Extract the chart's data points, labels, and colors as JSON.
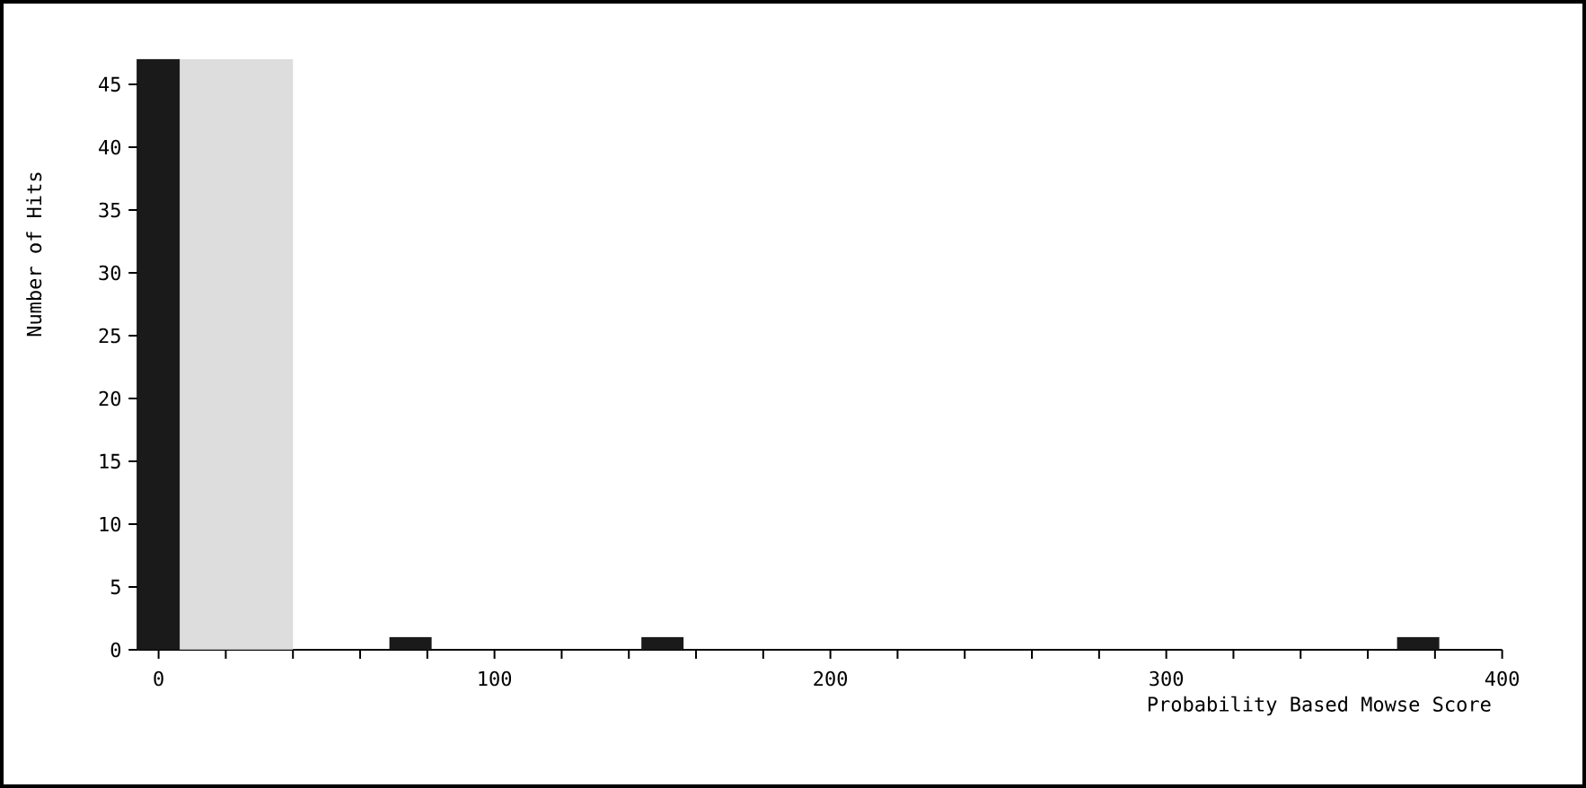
{
  "chart_data": {
    "type": "histogram",
    "xlabel": "Probability Based Mowse Score",
    "ylabel": "Number of Hits",
    "bins": [
      -6.25,
      6.25,
      18.75,
      31.25,
      43.75,
      56.25,
      68.75,
      81.25,
      93.75,
      106.25,
      118.75,
      131.25,
      143.75,
      156.25,
      168.75,
      181.25,
      193.75,
      206.25,
      218.75,
      231.25,
      243.75,
      256.25,
      268.75,
      281.25,
      293.75,
      306.25,
      318.75,
      331.25,
      343.75,
      356.25,
      368.75,
      381.25,
      393.75
    ],
    "values": [
      47,
      0,
      0,
      0,
      0,
      0,
      1,
      0,
      0,
      0,
      0,
      0,
      1,
      0,
      0,
      0,
      0,
      0,
      0,
      0,
      0,
      0,
      0,
      0,
      0,
      0,
      0,
      0,
      0,
      0,
      1,
      0
    ],
    "color": "#1a1a1a",
    "xlim": [
      -6.25,
      400
    ],
    "ylim": [
      0,
      47
    ],
    "xticks": [
      0,
      {
        "value": 20,
        "label": null
      },
      {
        "value": 40,
        "label": null
      },
      {
        "value": 60,
        "label": null
      },
      {
        "value": 80,
        "label": null
      },
      100,
      {
        "value": 120,
        "label": null
      },
      {
        "value": 140,
        "label": null
      },
      {
        "value": 160,
        "label": null
      },
      {
        "value": 180,
        "label": null
      },
      200,
      {
        "value": 220,
        "label": null
      },
      {
        "value": 240,
        "label": null
      },
      {
        "value": 260,
        "label": null
      },
      {
        "value": 280,
        "label": null
      },
      300,
      {
        "value": 320,
        "label": null
      },
      {
        "value": 340,
        "label": null
      },
      {
        "value": 360,
        "label": null
      },
      {
        "value": 380,
        "label": null
      },
      400
    ],
    "yticks": [
      0,
      5,
      10,
      15,
      20,
      25,
      30,
      35,
      40,
      45
    ],
    "bands": [
      {
        "axis": "x",
        "from": 6.25,
        "to": 40,
        "color": "#dddddd"
      }
    ]
  }
}
